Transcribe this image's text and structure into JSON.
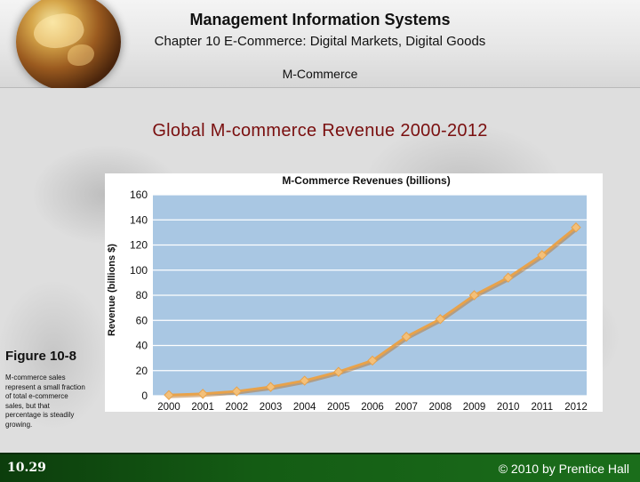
{
  "header": {
    "title": "Management Information Systems",
    "chapter": "Chapter 10 E-Commerce: Digital Markets, Digital Goods",
    "topic": "M-Commerce"
  },
  "slide": {
    "heading": "Global M-commerce Revenue 2000-2012"
  },
  "figure": {
    "label": "Figure 10-8",
    "caption": "M-commerce sales represent a small fraction of total e-commerce sales, but that percentage is steadily growing."
  },
  "footer": {
    "page": "10.29",
    "copyright": "© 2010 by Prentice Hall"
  },
  "colors": {
    "plot_background": "#a9c7e3",
    "line": "#e8a24a",
    "marker": "#f3c07a",
    "heading": "#7a0f0f",
    "footer": "#145c14"
  },
  "chart_data": {
    "type": "line",
    "title": "M-Commerce Revenues (billions)",
    "xlabel": "",
    "ylabel": "Revenue (billions $)",
    "x": [
      "2000",
      "2001",
      "2002",
      "2003",
      "2004",
      "2005",
      "2006",
      "2007",
      "2008",
      "2009",
      "2010",
      "2011",
      "2012"
    ],
    "y": [
      0.5,
      1.5,
      3.5,
      7,
      12,
      19,
      28,
      47,
      61,
      80,
      94,
      112,
      134
    ],
    "yticks": [
      0,
      20,
      40,
      60,
      80,
      100,
      120,
      140,
      160
    ],
    "ylim": [
      0,
      160
    ],
    "grid": true
  }
}
